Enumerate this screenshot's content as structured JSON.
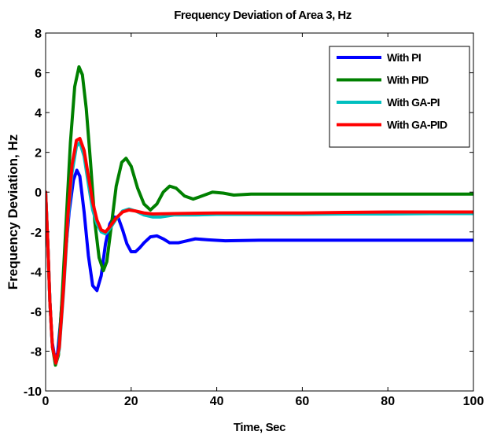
{
  "chart_data": {
    "type": "line",
    "title": "Frequency Deviation of Area 3, Hz",
    "xlabel": "Time, Sec",
    "ylabel": "Frequency Deviation, Hz",
    "xlim": [
      0,
      100
    ],
    "ylim": [
      -10,
      8
    ],
    "xticks": [
      0,
      20,
      40,
      60,
      80,
      100
    ],
    "yticks": [
      -10,
      -8,
      -6,
      -4,
      -2,
      0,
      2,
      4,
      6,
      8
    ],
    "grid": false,
    "legend_position": "top-right",
    "series": [
      {
        "name": "With PI",
        "color": "#0000ff",
        "points": [
          [
            0,
            0
          ],
          [
            0.5,
            -2.5
          ],
          [
            1,
            -5.5
          ],
          [
            1.5,
            -7.5
          ],
          [
            2.2,
            -8.4
          ],
          [
            2.8,
            -8.1
          ],
          [
            3.5,
            -6.5
          ],
          [
            4.5,
            -3.5
          ],
          [
            5.5,
            -1.0
          ],
          [
            6.5,
            0.6
          ],
          [
            7.3,
            1.1
          ],
          [
            8,
            0.8
          ],
          [
            9,
            -1.0
          ],
          [
            10,
            -3.2
          ],
          [
            11,
            -4.7
          ],
          [
            12,
            -4.95
          ],
          [
            13,
            -4.2
          ],
          [
            14,
            -2.6
          ],
          [
            15,
            -1.6
          ],
          [
            16,
            -1.25
          ],
          [
            17,
            -1.3
          ],
          [
            18,
            -1.9
          ],
          [
            19,
            -2.6
          ],
          [
            20,
            -3.0
          ],
          [
            21,
            -3.0
          ],
          [
            22,
            -2.8
          ],
          [
            23,
            -2.55
          ],
          [
            24.5,
            -2.25
          ],
          [
            26,
            -2.2
          ],
          [
            27.5,
            -2.35
          ],
          [
            29,
            -2.55
          ],
          [
            31,
            -2.55
          ],
          [
            33,
            -2.45
          ],
          [
            35,
            -2.35
          ],
          [
            38,
            -2.4
          ],
          [
            42,
            -2.45
          ],
          [
            50,
            -2.42
          ],
          [
            60,
            -2.42
          ],
          [
            70,
            -2.42
          ],
          [
            80,
            -2.42
          ],
          [
            90,
            -2.42
          ],
          [
            100,
            -2.42
          ]
        ]
      },
      {
        "name": "With PID",
        "color": "#008000",
        "points": [
          [
            0,
            0
          ],
          [
            0.5,
            -2.5
          ],
          [
            1,
            -5.5
          ],
          [
            1.6,
            -7.8
          ],
          [
            2.3,
            -8.7
          ],
          [
            3,
            -8.2
          ],
          [
            3.8,
            -5.5
          ],
          [
            4.8,
            -1.5
          ],
          [
            5.8,
            2.5
          ],
          [
            6.8,
            5.3
          ],
          [
            7.8,
            6.3
          ],
          [
            8.6,
            5.9
          ],
          [
            9.5,
            4.2
          ],
          [
            10.5,
            1.5
          ],
          [
            11.5,
            -1.5
          ],
          [
            12.5,
            -3.3
          ],
          [
            13.5,
            -3.95
          ],
          [
            14.3,
            -3.5
          ],
          [
            15.3,
            -1.8
          ],
          [
            16.5,
            0.3
          ],
          [
            17.8,
            1.5
          ],
          [
            18.8,
            1.7
          ],
          [
            20,
            1.3
          ],
          [
            21.5,
            0.2
          ],
          [
            23,
            -0.6
          ],
          [
            24.5,
            -0.9
          ],
          [
            26,
            -0.6
          ],
          [
            27.5,
            0.0
          ],
          [
            29,
            0.3
          ],
          [
            30.5,
            0.2
          ],
          [
            32.5,
            -0.2
          ],
          [
            34.5,
            -0.35
          ],
          [
            36.5,
            -0.2
          ],
          [
            39,
            0.0
          ],
          [
            41.5,
            -0.05
          ],
          [
            44,
            -0.15
          ],
          [
            48,
            -0.1
          ],
          [
            52,
            -0.1
          ],
          [
            60,
            -0.1
          ],
          [
            70,
            -0.1
          ],
          [
            80,
            -0.1
          ],
          [
            90,
            -0.1
          ],
          [
            100,
            -0.1
          ]
        ]
      },
      {
        "name": "With GA-PI",
        "color": "#00bfbf",
        "points": [
          [
            0,
            0
          ],
          [
            0.5,
            -2.5
          ],
          [
            1,
            -5.5
          ],
          [
            1.6,
            -7.8
          ],
          [
            2.4,
            -8.6
          ],
          [
            3.2,
            -7.9
          ],
          [
            4.2,
            -5.0
          ],
          [
            5.2,
            -1.5
          ],
          [
            6.2,
            1.0
          ],
          [
            7.2,
            2.3
          ],
          [
            8.0,
            2.5
          ],
          [
            9,
            1.8
          ],
          [
            10,
            0.4
          ],
          [
            11,
            -0.9
          ],
          [
            12,
            -1.6
          ],
          [
            13,
            -2.0
          ],
          [
            14,
            -2.1
          ],
          [
            15,
            -1.85
          ],
          [
            16.5,
            -1.35
          ],
          [
            18,
            -0.95
          ],
          [
            19.5,
            -0.85
          ],
          [
            21,
            -0.95
          ],
          [
            23,
            -1.15
          ],
          [
            25,
            -1.25
          ],
          [
            27,
            -1.25
          ],
          [
            30,
            -1.15
          ],
          [
            35,
            -1.15
          ],
          [
            40,
            -1.12
          ],
          [
            50,
            -1.12
          ],
          [
            60,
            -1.12
          ],
          [
            70,
            -1.1
          ],
          [
            80,
            -1.1
          ],
          [
            90,
            -1.08
          ],
          [
            100,
            -1.08
          ]
        ]
      },
      {
        "name": "With GA-PID",
        "color": "#ff0000",
        "points": [
          [
            0,
            0
          ],
          [
            0.5,
            -2.5
          ],
          [
            1,
            -5.5
          ],
          [
            1.6,
            -7.8
          ],
          [
            2.4,
            -8.6
          ],
          [
            3.2,
            -7.8
          ],
          [
            4.2,
            -4.8
          ],
          [
            5.2,
            -1.2
          ],
          [
            6.2,
            1.4
          ],
          [
            7.2,
            2.6
          ],
          [
            8.0,
            2.7
          ],
          [
            9,
            2.1
          ],
          [
            10,
            0.8
          ],
          [
            11,
            -0.5
          ],
          [
            12,
            -1.4
          ],
          [
            13,
            -1.9
          ],
          [
            14,
            -2.0
          ],
          [
            15,
            -1.75
          ],
          [
            16.5,
            -1.3
          ],
          [
            18,
            -1.0
          ],
          [
            19.5,
            -0.9
          ],
          [
            21,
            -0.95
          ],
          [
            23,
            -1.05
          ],
          [
            25,
            -1.1
          ],
          [
            30,
            -1.08
          ],
          [
            40,
            -1.05
          ],
          [
            50,
            -1.05
          ],
          [
            60,
            -1.05
          ],
          [
            70,
            -1.02
          ],
          [
            80,
            -1.0
          ],
          [
            90,
            -1.0
          ],
          [
            100,
            -1.0
          ]
        ]
      }
    ]
  }
}
